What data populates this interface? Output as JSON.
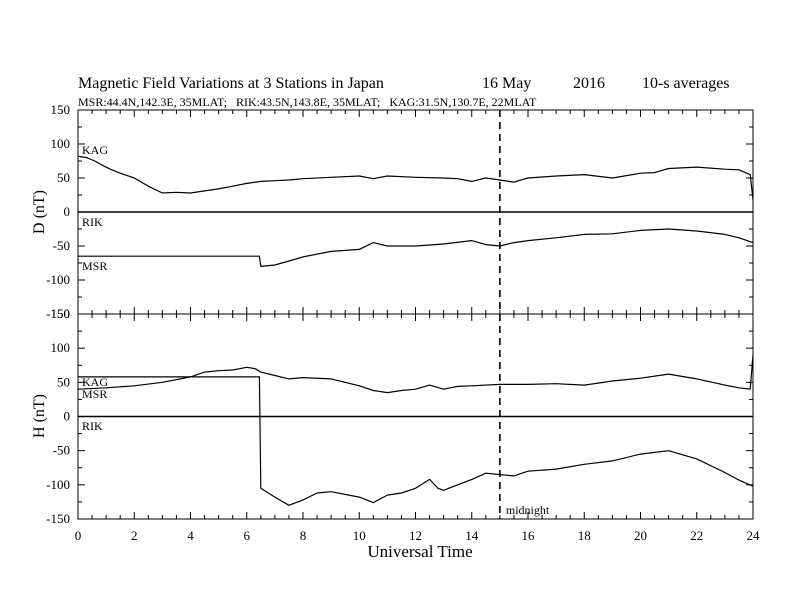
{
  "chart_data": {
    "type": "line",
    "title": "Magnetic Field Variations at 3 Stations in Japan",
    "date": "16 May",
    "year": "2016",
    "averaging": "10-s averages",
    "subtitle": "MSR:44.4N,142.3E, 35MLAT;   RIK:43.5N,143.8E, 35MLAT;   KAG:31.5N,130.7E, 22MLAT",
    "xlabel": "Universal Time",
    "xlim": [
      0,
      24
    ],
    "xticks": [
      "0",
      "2",
      "4",
      "6",
      "8",
      "10",
      "12",
      "14",
      "16",
      "18",
      "20",
      "22",
      "24"
    ],
    "grid": false,
    "annotation": {
      "text": "midnight",
      "x": 15
    },
    "panels": [
      {
        "ylabel": "D (nT)",
        "ylim": [
          -150,
          150
        ],
        "yticks": [
          "150",
          "100",
          "50",
          "0",
          "-50",
          "-100",
          "-150"
        ],
        "series": [
          {
            "name": "KAG",
            "x": [
              0,
              0.3,
              0.6,
              0.9,
              1.2,
              1.5,
              2,
              2.5,
              3,
              3.5,
              4,
              4.5,
              5,
              5.5,
              6,
              6.5,
              7,
              7.5,
              8,
              9,
              10,
              10.5,
              11,
              12,
              13,
              13.5,
              14,
              14.5,
              15,
              15.5,
              16,
              17,
              18,
              19,
              20,
              20.5,
              21,
              22,
              23,
              23.5,
              23.9,
              24
            ],
            "y": [
              82,
              80,
              75,
              68,
              62,
              57,
              50,
              38,
              28,
              29,
              28,
              31,
              34,
              38,
              42,
              45,
              46,
              47,
              49,
              51,
              53,
              49,
              53,
              51,
              50,
              49,
              45,
              50,
              47,
              44,
              50,
              53,
              55,
              50,
              57,
              58,
              64,
              66,
              63,
              62,
              55,
              18
            ]
          },
          {
            "name": "RIK",
            "x": [
              0,
              24
            ],
            "y": [
              0,
              0
            ]
          },
          {
            "name": "MSR",
            "x": [
              0,
              6.45,
              6.5,
              7,
              7.5,
              8,
              9,
              10,
              10.5,
              11,
              12,
              13,
              14,
              14.5,
              15,
              15.5,
              16,
              17,
              18,
              19,
              20,
              21,
              22,
              23,
              23.5,
              24
            ],
            "y": [
              -65,
              -65,
              -80,
              -78,
              -72,
              -66,
              -58,
              -55,
              -45,
              -50,
              -50,
              -47,
              -42,
              -48,
              -50,
              -45,
              -42,
              -38,
              -33,
              -32,
              -27,
              -25,
              -28,
              -33,
              -38,
              -45
            ]
          }
        ]
      },
      {
        "ylabel": "H (nT)",
        "ylim": [
          -150,
          150
        ],
        "yticks": [
          "150",
          "100",
          "50",
          "0",
          "-50",
          "-100",
          "-150"
        ],
        "series": [
          {
            "name": "KAG",
            "x": [
              0,
              1,
              2,
              3,
              4,
              4.5,
              5,
              5.5,
              6,
              6.3,
              6.5,
              7,
              7.5,
              8,
              9,
              10,
              10.5,
              11,
              11.5,
              12,
              12.5,
              13,
              13.5,
              14,
              15,
              16,
              17,
              18,
              19,
              20,
              21,
              22,
              23,
              23.5,
              23.9,
              24
            ],
            "y": [
              40,
              42,
              45,
              50,
              58,
              65,
              67,
              68,
              72,
              70,
              65,
              60,
              55,
              57,
              55,
              45,
              38,
              35,
              38,
              40,
              46,
              40,
              44,
              45,
              47,
              47,
              48,
              46,
              52,
              56,
              62,
              55,
              46,
              42,
              40,
              90
            ]
          },
          {
            "name": "RIK",
            "x": [
              0,
              24
            ],
            "y": [
              0,
              0
            ]
          },
          {
            "name": "MSR",
            "x": [
              0,
              6.45,
              6.5,
              7,
              7.5,
              8,
              8.5,
              9,
              10,
              10.5,
              11,
              11.5,
              12,
              12.5,
              12.8,
              13,
              13.5,
              14,
              14.5,
              15,
              15.5,
              16,
              17,
              18,
              19,
              20,
              21,
              22,
              23,
              23.5,
              24
            ],
            "y": [
              58,
              58,
              -105,
              -118,
              -130,
              -122,
              -112,
              -110,
              -118,
              -126,
              -115,
              -112,
              -105,
              -92,
              -105,
              -108,
              -100,
              -92,
              -83,
              -85,
              -87,
              -80,
              -77,
              -70,
              -65,
              -55,
              -50,
              -62,
              -82,
              -93,
              -102
            ]
          }
        ]
      }
    ]
  }
}
